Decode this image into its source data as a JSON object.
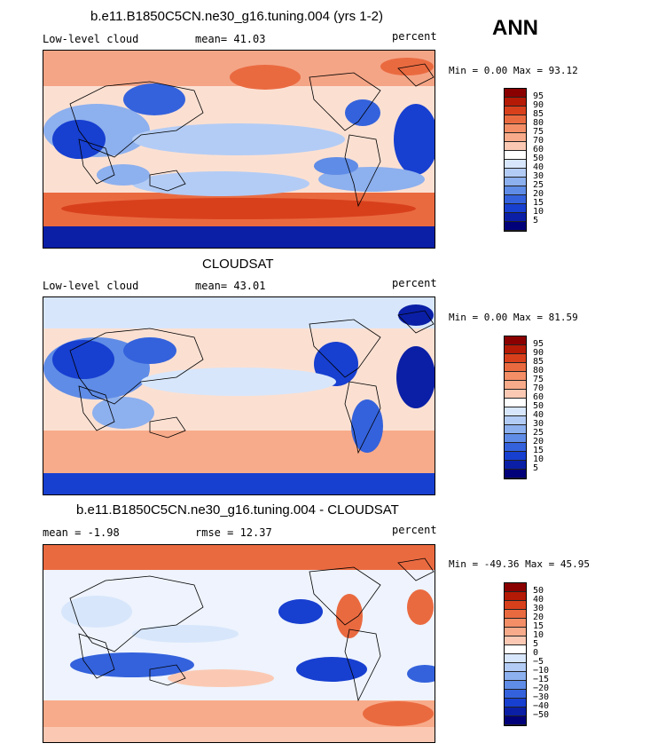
{
  "season": "ANN",
  "panels": [
    {
      "title": "b.e11.B1850C5CN.ne30_g16.tuning.004 (yrs 1-2)",
      "left_label": "Low-level cloud",
      "stat_label": "mean=  41.03",
      "units": "percent",
      "minmax": "Min =    0.00 Max =   93.12",
      "levels": [
        "95",
        "90",
        "85",
        "80",
        "75",
        "70",
        "60",
        "50",
        "40",
        "30",
        "25",
        "20",
        "15",
        "10",
        "5"
      ],
      "colors": [
        "#8a0000",
        "#b41a05",
        "#d8401c",
        "#ea6a40",
        "#f38e67",
        "#f8ab8a",
        "#fbc9b3",
        "#ffffff",
        "#d7e6fb",
        "#b3ccf5",
        "#8db0ee",
        "#5f8ce6",
        "#3462dc",
        "#173fd0",
        "#0a1fa6",
        "#01017a"
      ],
      "palette_scale": "abs"
    },
    {
      "title": "CLOUDSAT",
      "left_label": "Low-level cloud",
      "stat_label": "mean=  43.01",
      "units": "percent",
      "minmax": "Min =    0.00 Max =   81.59",
      "levels": [
        "95",
        "90",
        "85",
        "80",
        "75",
        "70",
        "60",
        "50",
        "40",
        "30",
        "25",
        "20",
        "15",
        "10",
        "5"
      ],
      "colors": [
        "#8a0000",
        "#b41a05",
        "#d8401c",
        "#ea6a40",
        "#f38e67",
        "#f8ab8a",
        "#fbc9b3",
        "#ffffff",
        "#d7e6fb",
        "#b3ccf5",
        "#8db0ee",
        "#5f8ce6",
        "#3462dc",
        "#173fd0",
        "#0a1fa6",
        "#01017a"
      ],
      "palette_scale": "abs"
    },
    {
      "title": "b.e11.B1850C5CN.ne30_g16.tuning.004 - CLOUDSAT",
      "left_label": "mean =   -1.98",
      "stat_label": "rmse =   12.37",
      "units": "percent",
      "minmax": "Min =  -49.36 Max =   45.95",
      "levels": [
        "50",
        "40",
        "30",
        "20",
        "15",
        "10",
        "5",
        "0",
        "−5",
        "−10",
        "−15",
        "−20",
        "−30",
        "−40",
        "−50"
      ],
      "colors": [
        "#8a0000",
        "#b41a05",
        "#d8401c",
        "#ea6a40",
        "#f38e67",
        "#f8ab8a",
        "#fbc9b3",
        "#ffffff",
        "#d7e6fb",
        "#b3ccf5",
        "#8db0ee",
        "#5f8ce6",
        "#3462dc",
        "#173fd0",
        "#0a1fa6",
        "#01017a"
      ],
      "palette_scale": "diff"
    }
  ]
}
